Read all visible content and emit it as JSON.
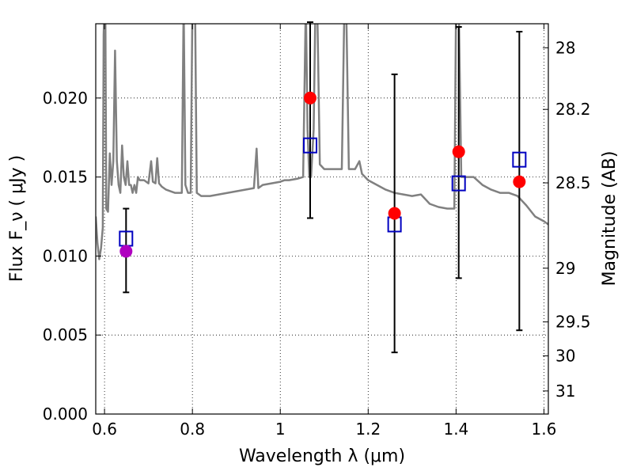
{
  "chart_data": {
    "type": "scatter",
    "xlabel": "Wavelength  λ (μm)",
    "ylabel": "Flux  F_ν  ( μJy )",
    "ylabel_right": "Magnitude (AB)",
    "xlim": [
      0.58,
      1.61
    ],
    "ylim": [
      0.0,
      0.0247
    ],
    "grid": true,
    "x_ticks": [
      0.6,
      0.8,
      1.0,
      1.2,
      1.4,
      1.6
    ],
    "x_tick_labels": [
      "0.6",
      "0.8",
      "1",
      "1.2",
      "1.4",
      "1.6"
    ],
    "y_ticks": [
      0.0,
      0.005,
      0.01,
      0.015,
      0.02
    ],
    "y_tick_labels": [
      "0.000",
      "0.005",
      "0.010",
      "0.015",
      "0.020"
    ],
    "right_ticks": [
      {
        "label": "28",
        "flux": 0.02318
      },
      {
        "label": "28.2",
        "flux": 0.01928
      },
      {
        "label": "28.5",
        "flux": 0.01463
      },
      {
        "label": "29",
        "flux": 0.00923
      },
      {
        "label": "29.5",
        "flux": 0.00583
      },
      {
        "label": "30",
        "flux": 0.00368
      },
      {
        "label": "31",
        "flux": 0.00146
      }
    ],
    "observed": [
      {
        "x": 0.649,
        "y": 0.0103,
        "err_low": 0.0077,
        "err_high": 0.013,
        "color": "#b000c0"
      },
      {
        "x": 1.068,
        "y": 0.02,
        "err_low": 0.0124,
        "err_high": 0.0248,
        "color": "#ff0000"
      },
      {
        "x": 1.26,
        "y": 0.0127,
        "err_low": 0.0039,
        "err_high": 0.0215,
        "color": "#ff0000"
      },
      {
        "x": 1.406,
        "y": 0.0166,
        "err_low": 0.0086,
        "err_high": 0.0245,
        "color": "#ff0000"
      },
      {
        "x": 1.544,
        "y": 0.0147,
        "err_low": 0.0053,
        "err_high": 0.0242,
        "color": "#ff0000"
      }
    ],
    "model_points": [
      {
        "x": 0.649,
        "y": 0.0111
      },
      {
        "x": 1.068,
        "y": 0.017
      },
      {
        "x": 1.26,
        "y": 0.012
      },
      {
        "x": 1.406,
        "y": 0.0146
      },
      {
        "x": 1.544,
        "y": 0.0161
      }
    ],
    "spectrum": [
      [
        0.58,
        0.0125
      ],
      [
        0.584,
        0.0108
      ],
      [
        0.588,
        0.0098
      ],
      [
        0.592,
        0.0105
      ],
      [
        0.596,
        0.0118
      ],
      [
        0.598,
        0.024
      ],
      [
        0.6,
        0.026
      ],
      [
        0.602,
        0.025
      ],
      [
        0.604,
        0.013
      ],
      [
        0.608,
        0.0128
      ],
      [
        0.612,
        0.0165
      ],
      [
        0.616,
        0.0145
      ],
      [
        0.62,
        0.016
      ],
      [
        0.624,
        0.023
      ],
      [
        0.628,
        0.016
      ],
      [
        0.632,
        0.0145
      ],
      [
        0.636,
        0.014
      ],
      [
        0.64,
        0.017
      ],
      [
        0.644,
        0.015
      ],
      [
        0.648,
        0.0145
      ],
      [
        0.652,
        0.016
      ],
      [
        0.656,
        0.0145
      ],
      [
        0.66,
        0.0145
      ],
      [
        0.664,
        0.014
      ],
      [
        0.668,
        0.0145
      ],
      [
        0.672,
        0.014
      ],
      [
        0.676,
        0.015
      ],
      [
        0.68,
        0.0148
      ],
      [
        0.69,
        0.0148
      ],
      [
        0.7,
        0.0146
      ],
      [
        0.706,
        0.016
      ],
      [
        0.71,
        0.0147
      ],
      [
        0.716,
        0.0146
      ],
      [
        0.72,
        0.0162
      ],
      [
        0.724,
        0.0146
      ],
      [
        0.73,
        0.0144
      ],
      [
        0.74,
        0.0142
      ],
      [
        0.75,
        0.0141
      ],
      [
        0.76,
        0.014
      ],
      [
        0.77,
        0.014
      ],
      [
        0.776,
        0.014
      ],
      [
        0.78,
        0.026
      ],
      [
        0.784,
        0.0145
      ],
      [
        0.79,
        0.014
      ],
      [
        0.796,
        0.014
      ],
      [
        0.8,
        0.026
      ],
      [
        0.806,
        0.026
      ],
      [
        0.81,
        0.014
      ],
      [
        0.82,
        0.0138
      ],
      [
        0.84,
        0.0138
      ],
      [
        0.86,
        0.0139
      ],
      [
        0.88,
        0.014
      ],
      [
        0.9,
        0.0141
      ],
      [
        0.92,
        0.0142
      ],
      [
        0.94,
        0.0143
      ],
      [
        0.946,
        0.0168
      ],
      [
        0.95,
        0.0143
      ],
      [
        0.96,
        0.0145
      ],
      [
        0.98,
        0.0146
      ],
      [
        1.0,
        0.0147
      ],
      [
        1.01,
        0.0148
      ],
      [
        1.02,
        0.0148
      ],
      [
        1.04,
        0.0149
      ],
      [
        1.052,
        0.015
      ],
      [
        1.058,
        0.026
      ],
      [
        1.062,
        0.018
      ],
      [
        1.066,
        0.015
      ],
      [
        1.07,
        0.015
      ],
      [
        1.076,
        0.018
      ],
      [
        1.08,
        0.026
      ],
      [
        1.084,
        0.026
      ],
      [
        1.09,
        0.0158
      ],
      [
        1.1,
        0.0155
      ],
      [
        1.12,
        0.0155
      ],
      [
        1.14,
        0.0155
      ],
      [
        1.146,
        0.026
      ],
      [
        1.15,
        0.026
      ],
      [
        1.156,
        0.0155
      ],
      [
        1.17,
        0.0155
      ],
      [
        1.18,
        0.016
      ],
      [
        1.186,
        0.0152
      ],
      [
        1.2,
        0.0148
      ],
      [
        1.22,
        0.0145
      ],
      [
        1.24,
        0.0142
      ],
      [
        1.26,
        0.014
      ],
      [
        1.28,
        0.0139
      ],
      [
        1.3,
        0.0138
      ],
      [
        1.32,
        0.0139
      ],
      [
        1.34,
        0.0133
      ],
      [
        1.36,
        0.0131
      ],
      [
        1.38,
        0.013
      ],
      [
        1.396,
        0.013
      ],
      [
        1.4,
        0.026
      ],
      [
        1.406,
        0.026
      ],
      [
        1.412,
        0.015
      ],
      [
        1.42,
        0.015
      ],
      [
        1.44,
        0.015
      ],
      [
        1.46,
        0.0145
      ],
      [
        1.48,
        0.0142
      ],
      [
        1.5,
        0.014
      ],
      [
        1.52,
        0.014
      ],
      [
        1.54,
        0.0138
      ],
      [
        1.56,
        0.0132
      ],
      [
        1.58,
        0.0125
      ],
      [
        1.6,
        0.0122
      ],
      [
        1.61,
        0.012
      ]
    ]
  }
}
